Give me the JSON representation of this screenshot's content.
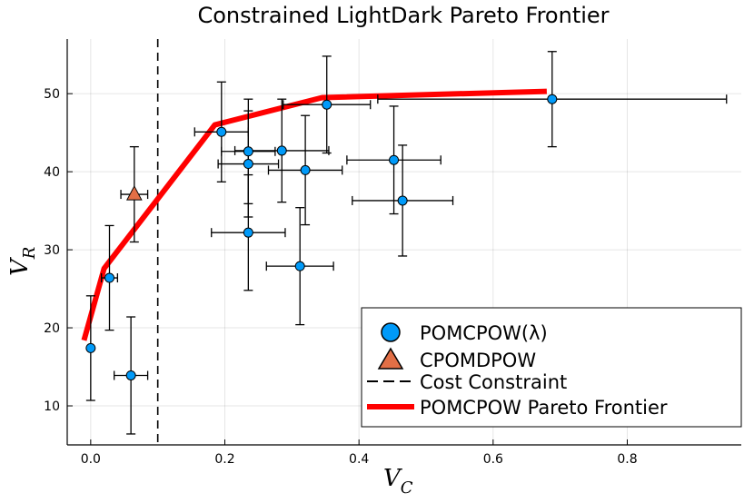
{
  "chart_data": {
    "type": "scatter",
    "title": "Constrained LightDark Pareto Frontier",
    "xlabel": "V",
    "xlabel_sub": "C",
    "ylabel": "V",
    "ylabel_sub": "R",
    "xlim": [
      -0.035,
      0.97
    ],
    "ylim": [
      5,
      57
    ],
    "xticks": [
      0.0,
      0.2,
      0.4,
      0.6,
      0.8
    ],
    "xtick_labels": [
      "0.0",
      "0.2",
      "0.4",
      "0.6",
      "0.8"
    ],
    "yticks": [
      10,
      20,
      30,
      40,
      50
    ],
    "ytick_labels": [
      "10",
      "20",
      "30",
      "40",
      "50"
    ],
    "grid": true,
    "legend_position": "bottom-right",
    "colors": {
      "pomcpow": "#009af9",
      "cpomdpow": "#e26f46",
      "frontier": "#ff0000",
      "constraint": "#000000"
    },
    "series": [
      {
        "name": "POMCPOW(λ)",
        "marker": "circle",
        "points": [
          {
            "x": 0.0,
            "y": 17.4,
            "xerr": 0.0,
            "yerr": 6.7
          },
          {
            "x": 0.028,
            "y": 26.4,
            "xerr": 0.012,
            "yerr": 6.7
          },
          {
            "x": 0.06,
            "y": 13.9,
            "xerr": 0.025,
            "yerr": 7.5
          },
          {
            "x": 0.195,
            "y": 45.1,
            "xerr": 0.04,
            "yerr": 6.4
          },
          {
            "x": 0.235,
            "y": 42.6,
            "xerr": 0.04,
            "yerr": 6.7
          },
          {
            "x": 0.235,
            "y": 41.0,
            "xerr": 0.045,
            "yerr": 6.8
          },
          {
            "x": 0.235,
            "y": 32.2,
            "xerr": 0.055,
            "yerr": 7.4
          },
          {
            "x": 0.285,
            "y": 42.7,
            "xerr": 0.07,
            "yerr": 6.6
          },
          {
            "x": 0.32,
            "y": 40.2,
            "xerr": 0.055,
            "yerr": 7.0
          },
          {
            "x": 0.312,
            "y": 27.9,
            "xerr": 0.05,
            "yerr": 7.5
          },
          {
            "x": 0.352,
            "y": 48.6,
            "xerr": 0.065,
            "yerr": 6.2
          },
          {
            "x": 0.452,
            "y": 41.5,
            "xerr": 0.07,
            "yerr": 6.9
          },
          {
            "x": 0.465,
            "y": 36.3,
            "xerr": 0.075,
            "yerr": 7.1
          },
          {
            "x": 0.688,
            "y": 49.3,
            "xerr": 0.26,
            "yerr": 6.1
          }
        ]
      },
      {
        "name": "CPOMDPOW",
        "marker": "triangle",
        "points": [
          {
            "x": 0.065,
            "y": 37.1,
            "xerr": 0.02,
            "yerr": 6.1
          }
        ]
      },
      {
        "name": "Cost Constraint",
        "style": "dashed-vline",
        "x": 0.1
      },
      {
        "name": "POMCPOW Pareto Frontier",
        "style": "line",
        "points": [
          {
            "x": -0.01,
            "y": 18.4
          },
          {
            "x": 0.02,
            "y": 27.6
          },
          {
            "x": 0.185,
            "y": 46.0
          },
          {
            "x": 0.345,
            "y": 49.5
          },
          {
            "x": 0.68,
            "y": 50.3
          }
        ]
      }
    ]
  }
}
